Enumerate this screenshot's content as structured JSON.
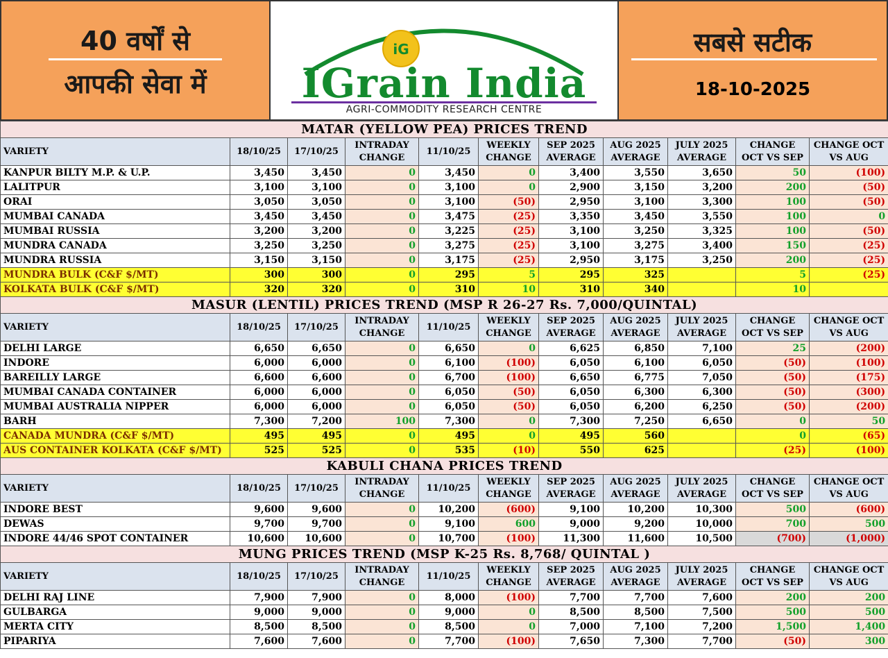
{
  "header": {
    "left_line1": "40 वर्षों से",
    "left_line2": "आपकी सेवा में",
    "logo_badge": "iG",
    "logo_title": "IGrain India",
    "logo_subtitle": "AGRI-COMMODITY RESEARCH CENTRE",
    "right_line1": "सबसे सटीक",
    "date": "18-10-2025"
  },
  "colors": {
    "header_bg": "#f5a15a",
    "logo_green": "#138a2e",
    "positive": "#12a02a",
    "negative": "#d00000",
    "highlight": "#ffff33"
  },
  "columns": [
    "VARIETY",
    "18/10/25",
    "17/10/25",
    "INTRADAY CHANGE",
    "11/10/25",
    "WEEKLY CHANGE",
    "SEP 2025 AVERAGE",
    "AUG 2025 AVERAGE",
    "JULY 2025 AVERAGE",
    "CHANGE OCT VS SEP",
    "CHANGE OCT VS AUG"
  ],
  "sections": [
    {
      "title": "MATAR (YELLOW PEA) PRICES TREND",
      "rows": [
        {
          "variety": "KANPUR BILTY M.P.  & U.P.",
          "d1": "3,450",
          "d2": "3,450",
          "intraday": "0",
          "d3": "3,450",
          "weekly": "0",
          "sep": "3,400",
          "aug": "3,550",
          "july": "3,650",
          "vs_sep": "50",
          "vs_aug": "(100)",
          "highlight": false
        },
        {
          "variety": "LALITPUR",
          "d1": "3,100",
          "d2": "3,100",
          "intraday": "0",
          "d3": "3,100",
          "weekly": "0",
          "sep": "2,900",
          "aug": "3,150",
          "july": "3,200",
          "vs_sep": "200",
          "vs_aug": "(50)",
          "highlight": false
        },
        {
          "variety": "ORAI",
          "d1": "3,050",
          "d2": "3,050",
          "intraday": "0",
          "d3": "3,100",
          "weekly": "(50)",
          "sep": "2,950",
          "aug": "3,100",
          "july": "3,300",
          "vs_sep": "100",
          "vs_aug": "(50)",
          "highlight": false
        },
        {
          "variety": "MUMBAI CANADA",
          "d1": "3,450",
          "d2": "3,450",
          "intraday": "0",
          "d3": "3,475",
          "weekly": "(25)",
          "sep": "3,350",
          "aug": "3,450",
          "july": "3,550",
          "vs_sep": "100",
          "vs_aug": "0",
          "highlight": false
        },
        {
          "variety": "MUMBAI RUSSIA",
          "d1": "3,200",
          "d2": "3,200",
          "intraday": "0",
          "d3": "3,225",
          "weekly": "(25)",
          "sep": "3,100",
          "aug": "3,250",
          "july": "3,325",
          "vs_sep": "100",
          "vs_aug": "(50)",
          "highlight": false
        },
        {
          "variety": "MUNDRA CANADA",
          "d1": "3,250",
          "d2": "3,250",
          "intraday": "0",
          "d3": "3,275",
          "weekly": "(25)",
          "sep": "3,100",
          "aug": "3,275",
          "july": "3,400",
          "vs_sep": "150",
          "vs_aug": "(25)",
          "highlight": false
        },
        {
          "variety": "MUNDRA RUSSIA",
          "d1": "3,150",
          "d2": "3,150",
          "intraday": "0",
          "d3": "3,175",
          "weekly": "(25)",
          "sep": "2,950",
          "aug": "3,175",
          "july": "3,250",
          "vs_sep": "200",
          "vs_aug": "(25)",
          "highlight": false
        },
        {
          "variety": "MUNDRA BULK (C&F $/MT)",
          "d1": "300",
          "d2": "300",
          "intraday": "0",
          "d3": "295",
          "weekly": "5",
          "sep": "295",
          "aug": "325",
          "july": "",
          "vs_sep": "5",
          "vs_aug": "(25)",
          "highlight": true
        },
        {
          "variety": "KOLKATA BULK (C&F $/MT)",
          "d1": "320",
          "d2": "320",
          "intraday": "0",
          "d3": "310",
          "weekly": "10",
          "sep": "310",
          "aug": "340",
          "july": "",
          "vs_sep": "10",
          "vs_aug": "",
          "highlight": true
        }
      ]
    },
    {
      "title": "MASUR (LENTIL) PRICES TREND  (MSP R 26-27 Rs. 7,000/QUINTAL)",
      "rows": [
        {
          "variety": "DELHI LARGE",
          "d1": "6,650",
          "d2": "6,650",
          "intraday": "0",
          "d3": "6,650",
          "weekly": "0",
          "sep": "6,625",
          "aug": "6,850",
          "july": "7,100",
          "vs_sep": "25",
          "vs_aug": "(200)",
          "highlight": false
        },
        {
          "variety": "INDORE",
          "d1": "6,000",
          "d2": "6,000",
          "intraday": "0",
          "d3": "6,100",
          "weekly": "(100)",
          "sep": "6,050",
          "aug": "6,100",
          "july": "6,050",
          "vs_sep": "(50)",
          "vs_aug": "(100)",
          "highlight": false
        },
        {
          "variety": "BAREILLY LARGE",
          "d1": "6,600",
          "d2": "6,600",
          "intraday": "0",
          "d3": "6,700",
          "weekly": "(100)",
          "sep": "6,650",
          "aug": "6,775",
          "july": "7,050",
          "vs_sep": "(50)",
          "vs_aug": "(175)",
          "highlight": false
        },
        {
          "variety": "MUMBAI CANADA CONTAINER",
          "d1": "6,000",
          "d2": "6,000",
          "intraday": "0",
          "d3": "6,050",
          "weekly": "(50)",
          "sep": "6,050",
          "aug": "6,300",
          "july": "6,300",
          "vs_sep": "(50)",
          "vs_aug": "(300)",
          "highlight": false
        },
        {
          "variety": "MUMBAI AUSTRALIA NIPPER",
          "d1": "6,000",
          "d2": "6,000",
          "intraday": "0",
          "d3": "6,050",
          "weekly": "(50)",
          "sep": "6,050",
          "aug": "6,200",
          "july": "6,250",
          "vs_sep": "(50)",
          "vs_aug": "(200)",
          "highlight": false
        },
        {
          "variety": "BARH",
          "d1": "7,300",
          "d2": "7,200",
          "intraday": "100",
          "d3": "7,300",
          "weekly": "0",
          "sep": "7,300",
          "aug": "7,250",
          "july": "6,650",
          "vs_sep": "0",
          "vs_aug": "50",
          "highlight": false
        },
        {
          "variety": "CANADA MUNDRA (C&F $/MT)",
          "d1": "495",
          "d2": "495",
          "intraday": "0",
          "d3": "495",
          "weekly": "0",
          "sep": "495",
          "aug": "560",
          "july": "",
          "vs_sep": "0",
          "vs_aug": "(65)",
          "highlight": true
        },
        {
          "variety": "AUS CONTAINER KOLKATA (C&F $/MT)",
          "d1": "525",
          "d2": "525",
          "intraday": "0",
          "d3": "535",
          "weekly": "(10)",
          "sep": "550",
          "aug": "625",
          "july": "",
          "vs_sep": "(25)",
          "vs_aug": "(100)",
          "highlight": true
        }
      ]
    },
    {
      "title": "KABULI CHANA PRICES TREND",
      "rows": [
        {
          "variety": "INDORE BEST",
          "d1": "9,600",
          "d2": "9,600",
          "intraday": "0",
          "d3": "10,200",
          "weekly": "(600)",
          "sep": "9,100",
          "aug": "10,200",
          "july": "10,300",
          "vs_sep": "500",
          "vs_aug": "(600)",
          "highlight": false
        },
        {
          "variety": "DEWAS",
          "d1": "9,700",
          "d2": "9,700",
          "intraday": "0",
          "d3": "9,100",
          "weekly": "600",
          "sep": "9,000",
          "aug": "9,200",
          "july": "10,000",
          "vs_sep": "700",
          "vs_aug": "500",
          "highlight": false
        },
        {
          "variety": "INDORE 44/46 SPOT CONTAINER",
          "d1": "10,600",
          "d2": "10,600",
          "intraday": "0",
          "d3": "10,700",
          "weekly": "(100)",
          "sep": "11,300",
          "aug": "11,600",
          "july": "10,500",
          "vs_sep": "(700)",
          "vs_aug": "(1,000)",
          "highlight": false,
          "grey": true
        }
      ]
    },
    {
      "title": "MUNG PRICES TREND  (MSP K-25 Rs. 8,768/ QUINTAL )",
      "rows": [
        {
          "variety": "DELHI RAJ LINE",
          "d1": "7,900",
          "d2": "7,900",
          "intraday": "0",
          "d3": "8,000",
          "weekly": "(100)",
          "sep": "7,700",
          "aug": "7,700",
          "july": "7,600",
          "vs_sep": "200",
          "vs_aug": "200",
          "highlight": false
        },
        {
          "variety": "GULBARGA",
          "d1": "9,000",
          "d2": "9,000",
          "intraday": "0",
          "d3": "9,000",
          "weekly": "0",
          "sep": "8,500",
          "aug": "8,500",
          "july": "7,500",
          "vs_sep": "500",
          "vs_aug": "500",
          "highlight": false
        },
        {
          "variety": "MERTA CITY",
          "d1": "8,500",
          "d2": "8,500",
          "intraday": "0",
          "d3": "8,500",
          "weekly": "0",
          "sep": "7,000",
          "aug": "7,100",
          "july": "7,200",
          "vs_sep": "1,500",
          "vs_aug": "1,400",
          "highlight": false
        },
        {
          "variety": "PIPARIYA",
          "d1": "7,600",
          "d2": "7,600",
          "intraday": "0",
          "d3": "7,700",
          "weekly": "(100)",
          "sep": "7,650",
          "aug": "7,300",
          "july": "7,700",
          "vs_sep": "(50)",
          "vs_aug": "300",
          "highlight": false
        }
      ]
    }
  ]
}
